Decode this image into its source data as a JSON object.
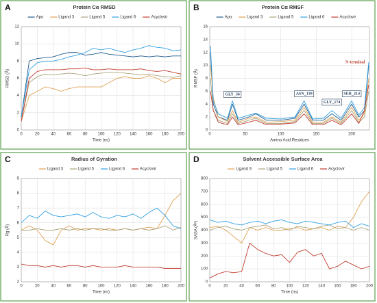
{
  "chart_data": [
    {
      "type": "line",
      "panel_label": "A",
      "title": "Protein Cα RMSD",
      "x_label": "Time (ns)",
      "y_label": "RMSD (Å)",
      "x": [
        0,
        10,
        20,
        30,
        40,
        50,
        60,
        70,
        80,
        90,
        100,
        110,
        120,
        130,
        140,
        150,
        160,
        170,
        180,
        190,
        200
      ],
      "xlim": [
        0,
        200
      ],
      "xticks": [
        0,
        20,
        40,
        60,
        80,
        100,
        120,
        140,
        160,
        180,
        200
      ],
      "ylim": [
        0,
        12
      ],
      "yticks": [
        0,
        2,
        4,
        6,
        8,
        10,
        12
      ],
      "grid": true,
      "series": [
        {
          "name": "Apo",
          "color": "#1f5a8c",
          "values": [
            1.5,
            8,
            8.3,
            8.4,
            8.5,
            8.8,
            9,
            9,
            8.7,
            8.8,
            9,
            8.8,
            8.7,
            8.6,
            8.5,
            8.6,
            8.5,
            8.6,
            8.5,
            8.6,
            8.6
          ]
        },
        {
          "name": "Ligand 3",
          "color": "#e0a050",
          "values": [
            1,
            4,
            4.5,
            5,
            4.8,
            4.5,
            4.8,
            5,
            5,
            5,
            5,
            5.5,
            6,
            6.2,
            6,
            6,
            6.3,
            6,
            5.5,
            6,
            6
          ]
        },
        {
          "name": "Ligand 5",
          "color": "#a9a27a",
          "values": [
            1,
            5.5,
            6.2,
            6.5,
            6.4,
            6.5,
            6.6,
            6.5,
            6.3,
            6.5,
            6.6,
            6.7,
            6.7,
            6.6,
            6.5,
            6.4,
            6.5,
            6.3,
            6.2,
            6.1,
            6.3
          ]
        },
        {
          "name": "Ligand 6",
          "color": "#2f9fe0",
          "values": [
            1.5,
            7,
            7.8,
            8,
            8,
            8.2,
            8.5,
            8.7,
            9,
            9.5,
            9.3,
            9.5,
            9.2,
            9,
            9.3,
            9.5,
            9.8,
            9.6,
            9.5,
            9.2,
            9.3
          ]
        },
        {
          "name": "Acyclovir",
          "color": "#c0392b",
          "values": [
            1,
            6,
            6.8,
            7,
            7,
            7,
            7.1,
            7.1,
            7.2,
            7,
            7,
            7.1,
            7,
            7,
            7,
            7.1,
            6.9,
            6.8,
            6.9,
            6.7,
            6.5
          ]
        }
      ]
    },
    {
      "type": "line",
      "panel_label": "B",
      "title": "Protein Cα RMSF",
      "x_label": "Amino Acid Residues",
      "y_label": "RMSF (Å)",
      "x": [
        1,
        5,
        12,
        25,
        32,
        40,
        55,
        65,
        80,
        100,
        120,
        133,
        145,
        160,
        172,
        185,
        200,
        210,
        218,
        224
      ],
      "xlim": [
        0,
        225
      ],
      "xticks": [
        0,
        50,
        100,
        150,
        200
      ],
      "ylim": [
        0,
        16
      ],
      "yticks": [
        0,
        2,
        4,
        6,
        8,
        10,
        12,
        14,
        16
      ],
      "grid": true,
      "series": [
        {
          "name": "Apo",
          "color": "#1f5a8c",
          "values": [
            12,
            4,
            2,
            1.5,
            4,
            1.5,
            2,
            2.5,
            1.5,
            1.5,
            1.8,
            4,
            1.5,
            1.5,
            2.5,
            1.5,
            4,
            2,
            3,
            10
          ]
        },
        {
          "name": "Ligand 3",
          "color": "#e0a050",
          "values": [
            10,
            5,
            2,
            1.3,
            3,
            1.2,
            1.8,
            2,
            1.2,
            1.3,
            1.5,
            3.5,
            1.2,
            1.2,
            2,
            1.2,
            3.5,
            1.5,
            2.5,
            8
          ]
        },
        {
          "name": "Ligand 5",
          "color": "#a9a27a",
          "values": [
            8,
            3,
            1.5,
            1,
            2.5,
            1,
            1.5,
            1.8,
            1,
            1,
            1.3,
            3,
            1,
            1,
            1.8,
            1,
            3,
            1.2,
            2,
            6
          ]
        },
        {
          "name": "Ligand 6",
          "color": "#2f9fe0",
          "values": [
            13,
            4.5,
            2.5,
            1.8,
            4.5,
            1.8,
            2.3,
            2.6,
            1.8,
            1.7,
            2,
            4.5,
            1.7,
            1.8,
            3,
            1.8,
            4.5,
            2.3,
            3.5,
            10.5
          ]
        },
        {
          "name": "Acyclovir",
          "color": "#c0392b",
          "values": [
            6,
            3,
            1.2,
            0.8,
            2,
            0.8,
            1.2,
            1.5,
            0.8,
            0.9,
            1.1,
            2.5,
            0.8,
            0.8,
            1.5,
            0.8,
            2.5,
            1,
            3,
            7
          ]
        }
      ],
      "annotations": [
        {
          "text": "GLY_36",
          "x": 32,
          "y": 5.5,
          "boxed": true
        },
        {
          "text": "ASN_139",
          "x": 133,
          "y": 5.6,
          "boxed": true
        },
        {
          "text": "GLY_174",
          "x": 172,
          "y": 4.3,
          "boxed": true
        },
        {
          "text": "SER_214",
          "x": 200,
          "y": 5.6,
          "boxed": true
        },
        {
          "text": "N-terminal",
          "x": 205,
          "y": 10.5,
          "boxed": false,
          "color": "#c0392b"
        }
      ]
    },
    {
      "type": "line",
      "panel_label": "C",
      "title": "Radius of Gyration",
      "x_label": "Time (ns)",
      "y_label": "Rg (Å)",
      "x": [
        0,
        10,
        20,
        30,
        40,
        50,
        60,
        70,
        80,
        90,
        100,
        110,
        120,
        130,
        140,
        150,
        160,
        170,
        180,
        190,
        200
      ],
      "xlim": [
        0,
        200
      ],
      "xticks": [
        0,
        20,
        40,
        60,
        80,
        100,
        120,
        140,
        160,
        180,
        200
      ],
      "ylim": [
        2,
        9
      ],
      "yticks": [
        2,
        3,
        4,
        5,
        6,
        7,
        8,
        9
      ],
      "grid": true,
      "series": [
        {
          "name": "Ligand 3",
          "color": "#e0a050",
          "values": [
            5.5,
            5.8,
            5.5,
            4.8,
            4.5,
            5.5,
            5.8,
            5.5,
            5.6,
            5.6,
            5.5,
            5.6,
            5.5,
            5.6,
            5.5,
            5.6,
            5.7,
            5.6,
            6.5,
            7.5,
            8
          ]
        },
        {
          "name": "Ligand 5",
          "color": "#a9a27a",
          "values": [
            5.5,
            5.5,
            5.6,
            5.5,
            5.5,
            5.6,
            5.5,
            5.6,
            5.5,
            5.6,
            5.6,
            5.5,
            5.5,
            5.6,
            5.5,
            5.6,
            5.5,
            5.6,
            5.8,
            5.5,
            5.7
          ]
        },
        {
          "name": "Ligand 6",
          "color": "#2f9fe0",
          "values": [
            6,
            6.5,
            6.3,
            6.8,
            6.5,
            6.4,
            6.5,
            6.6,
            6.4,
            6.7,
            6.4,
            6.3,
            6.5,
            6.4,
            6.6,
            6.3,
            6.7,
            7,
            6.5,
            5.8,
            5.6
          ]
        },
        {
          "name": "Acyclovir",
          "color": "#c0392b",
          "values": [
            3.2,
            3.1,
            3.1,
            3.0,
            3.1,
            3.0,
            3.1,
            3.1,
            3.0,
            3.1,
            3.0,
            3.0,
            3.0,
            3.1,
            3.0,
            3.0,
            3.0,
            3.0,
            2.9,
            2.9,
            2.9
          ]
        }
      ]
    },
    {
      "type": "line",
      "panel_label": "D",
      "title": "Solvent Accessible Surface Area",
      "x_label": "Time (ns)",
      "y_label": "SASA (Å²)",
      "x": [
        0,
        10,
        20,
        30,
        40,
        50,
        60,
        70,
        80,
        90,
        100,
        110,
        120,
        130,
        140,
        150,
        160,
        170,
        180,
        190,
        200
      ],
      "xlim": [
        0,
        200
      ],
      "xticks": [
        0,
        20,
        40,
        60,
        80,
        100,
        120,
        140,
        160,
        180,
        200
      ],
      "ylim": [
        0,
        800
      ],
      "yticks": [
        0,
        100,
        200,
        300,
        400,
        500,
        600,
        700,
        800
      ],
      "grid": true,
      "series": [
        {
          "name": "Ligand 3",
          "color": "#e0a050",
          "values": [
            420,
            430,
            400,
            350,
            300,
            420,
            400,
            420,
            400,
            400,
            410,
            420,
            400,
            410,
            420,
            400,
            430,
            420,
            500,
            620,
            700
          ]
        },
        {
          "name": "Ligand 5",
          "color": "#a9a27a",
          "values": [
            400,
            420,
            430,
            410,
            400,
            420,
            430,
            440,
            410,
            420,
            400,
            430,
            420,
            410,
            430,
            440,
            410,
            420,
            400,
            420,
            400
          ]
        },
        {
          "name": "Ligand 6",
          "color": "#2f9fe0",
          "values": [
            480,
            460,
            470,
            450,
            440,
            460,
            470,
            450,
            470,
            480,
            460,
            450,
            470,
            460,
            450,
            440,
            460,
            470,
            420,
            450,
            430
          ]
        },
        {
          "name": "Acyclovir",
          "color": "#c0392b",
          "values": [
            30,
            60,
            80,
            70,
            80,
            300,
            250,
            220,
            200,
            210,
            150,
            230,
            250,
            200,
            220,
            100,
            120,
            160,
            130,
            100,
            120
          ]
        }
      ]
    }
  ]
}
